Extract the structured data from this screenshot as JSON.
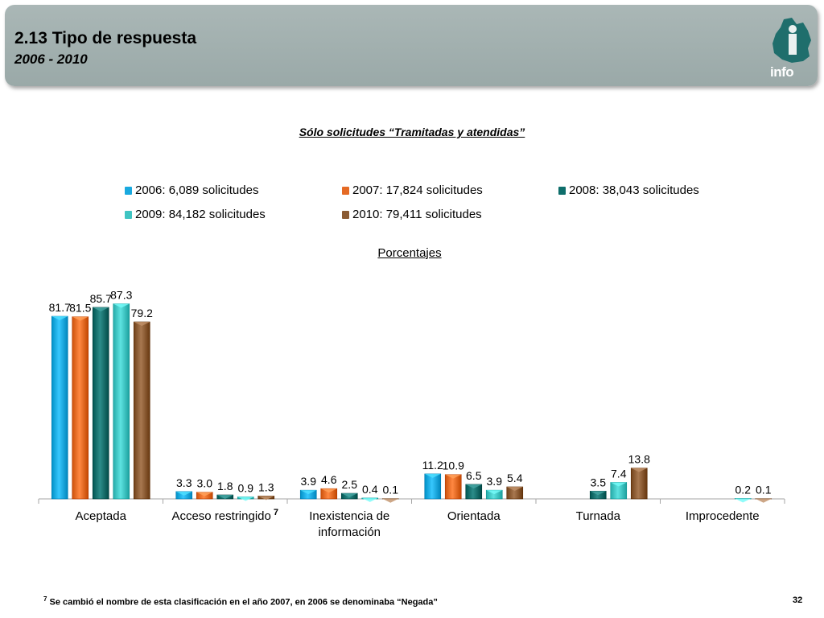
{
  "header": {
    "title": "2.13 Tipo de respuesta",
    "subtitle": "2006 - 2010",
    "logo_text": "info"
  },
  "chart_note": "Sólo solicitudes “Tramitadas y atendidas”",
  "porcentajes_label": "Porcentajes",
  "colors": {
    "s2006": "#19a9df",
    "s2007": "#e56a24",
    "s2008": "#0e6e6b",
    "s2009": "#3fc4c2",
    "s2010": "#8a5a32"
  },
  "chart_data": {
    "type": "bar",
    "title": "",
    "xlabel": "",
    "ylabel": "",
    "categories": [
      "Aceptada",
      "Acceso restringido",
      "Inexistencia de información",
      "Orientada",
      "Turnada",
      "Improcedente"
    ],
    "category_superscripts": [
      "",
      "7",
      "",
      "",
      "",
      ""
    ],
    "series": [
      {
        "name": "2006: 6,089 solicitudes",
        "values": [
          81.7,
          3.3,
          3.9,
          11.2,
          null,
          null
        ]
      },
      {
        "name": "2007: 17,824 solicitudes",
        "values": [
          81.5,
          3.0,
          4.6,
          10.9,
          null,
          null
        ]
      },
      {
        "name": "2008: 38,043 solicitudes",
        "values": [
          85.7,
          1.8,
          2.5,
          6.5,
          3.5,
          null
        ]
      },
      {
        "name": "2009: 84,182 solicitudes",
        "values": [
          87.3,
          0.9,
          0.4,
          3.9,
          7.4,
          0.2
        ]
      },
      {
        "name": "2010: 79,411 solicitudes",
        "values": [
          79.2,
          1.3,
          0.1,
          5.4,
          13.8,
          0.1
        ]
      }
    ],
    "ylim": [
      0,
      90
    ],
    "grid": false,
    "legend_position": "top"
  },
  "footnote": {
    "marker": "7",
    "text": "Se cambió el nombre de esta clasificación en el  año 2007, en 2006 se denominaba “Negada”"
  },
  "page_number": "32"
}
